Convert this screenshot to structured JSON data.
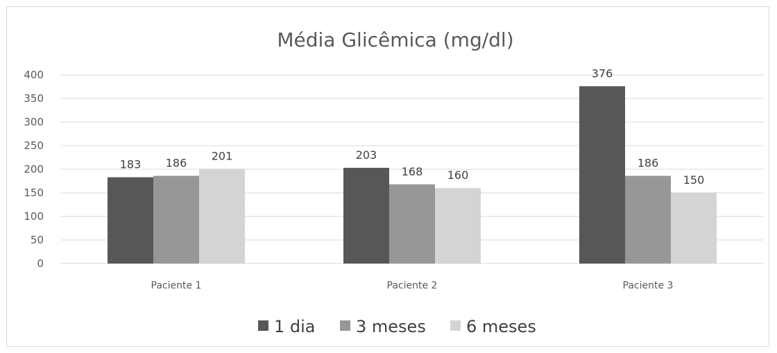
{
  "chart_data": {
    "type": "bar",
    "title": "Média Glicêmica (mg/dl)",
    "categories": [
      "Paciente 1",
      "Paciente 2",
      "Paciente 3"
    ],
    "series": [
      {
        "name": "1 dia",
        "values": [
          183,
          203,
          376
        ],
        "color": "#575757"
      },
      {
        "name": "3 meses",
        "values": [
          186,
          168,
          186
        ],
        "color": "#979797"
      },
      {
        "name": "6 meses",
        "values": [
          201,
          160,
          150
        ],
        "color": "#d4d4d4"
      }
    ],
    "ylim": [
      0,
      400
    ],
    "yticks": [
      0,
      50,
      100,
      150,
      200,
      250,
      300,
      350,
      400
    ],
    "grid": true,
    "legend_position": "bottom"
  }
}
